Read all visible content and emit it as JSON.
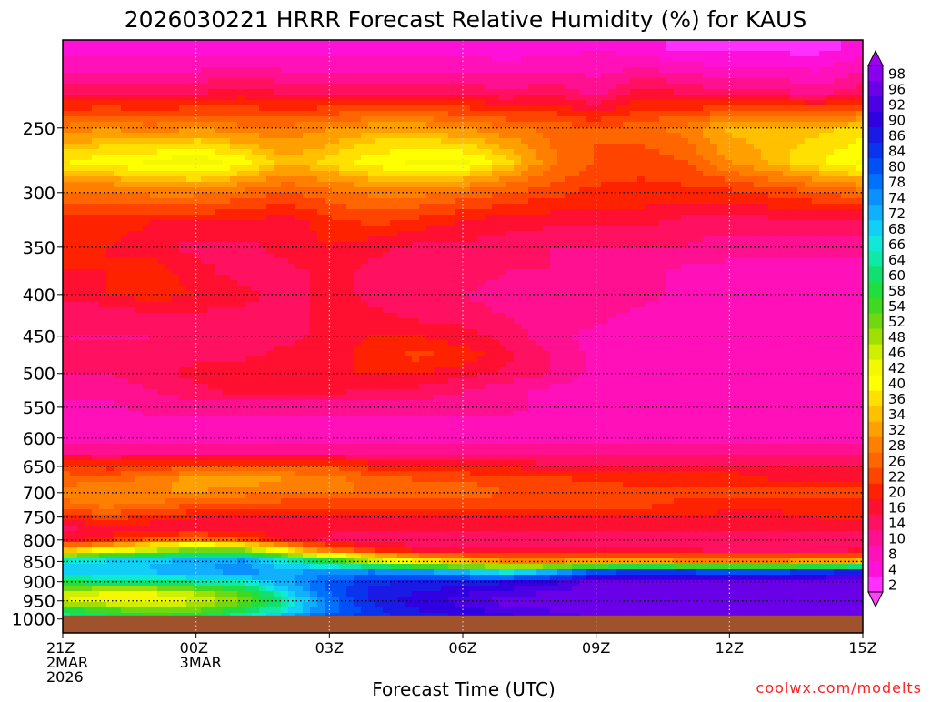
{
  "chart_data": {
    "type": "heatmap",
    "title": "2026030221 HRRR Forecast Relative Humidity (%) for KAUS",
    "xlabel": "Forecast Time (UTC)",
    "ylabel": "",
    "credit": "coolwx.com/modelts",
    "x_ticks": [
      {
        "hour": 0,
        "label": [
          "21Z",
          "2MAR",
          "2026"
        ]
      },
      {
        "hour": 3,
        "label": [
          "00Z",
          "3MAR"
        ]
      },
      {
        "hour": 6,
        "label": [
          "03Z"
        ]
      },
      {
        "hour": 9,
        "label": [
          "06Z"
        ]
      },
      {
        "hour": 12,
        "label": [
          "09Z"
        ]
      },
      {
        "hour": 15,
        "label": [
          "12Z"
        ]
      },
      {
        "hour": 18,
        "label": [
          "15Z"
        ]
      }
    ],
    "xlim": [
      0,
      18
    ],
    "y_ticks": [
      250,
      300,
      350,
      400,
      450,
      500,
      550,
      600,
      650,
      700,
      750,
      800,
      850,
      900,
      950,
      1000
    ],
    "ylim": [
      195,
      1040
    ],
    "y_scale": "log",
    "ground_level_hpa": 990,
    "grid": true,
    "colorbar": {
      "placement": "right",
      "labels": [
        "98",
        "96",
        "92",
        "90",
        "86",
        "84",
        "80",
        "78",
        "74",
        "72",
        "68",
        "66",
        "64",
        "60",
        "58",
        "54",
        "52",
        "48",
        "46",
        "42",
        "40",
        "36",
        "34",
        "32",
        "28",
        "26",
        "22",
        "20",
        "16",
        "14",
        "10",
        "8",
        "4",
        "2"
      ],
      "colors": [
        "#8800ee",
        "#6a00e8",
        "#4c00e6",
        "#3000e0",
        "#1a1ae6",
        "#0a33ee",
        "#0050f5",
        "#0070ff",
        "#0a90ff",
        "#10b0ff",
        "#10d0f5",
        "#10e8d8",
        "#10e8a8",
        "#10e070",
        "#20dd40",
        "#40d820",
        "#70d810",
        "#a0e000",
        "#d0ee00",
        "#f4f800",
        "#ffff00",
        "#ffe000",
        "#ffc000",
        "#ffa000",
        "#ff8000",
        "#ff6600",
        "#ff4400",
        "#ff2200",
        "#ff1030",
        "#ff1060",
        "#ff1090",
        "#ff10b8",
        "#ff10d8",
        "#ff30ff"
      ]
    },
    "x": [
      0,
      1,
      2,
      3,
      4,
      5,
      6,
      7,
      8,
      9,
      10,
      11,
      12,
      13,
      14,
      15,
      16,
      17,
      18
    ],
    "levels_hpa": [
      200,
      225,
      250,
      275,
      300,
      325,
      350,
      375,
      400,
      425,
      450,
      475,
      500,
      525,
      550,
      575,
      600,
      625,
      650,
      675,
      700,
      725,
      750,
      775,
      800,
      825,
      850,
      875,
      900,
      925,
      950,
      975,
      1000
    ],
    "rh": [
      [
        4,
        4,
        4,
        4,
        4,
        4,
        4,
        4,
        4,
        4,
        4,
        4,
        6,
        4,
        2,
        2,
        2,
        2,
        4
      ],
      [
        14,
        14,
        14,
        14,
        16,
        14,
        14,
        14,
        14,
        14,
        12,
        14,
        10,
        16,
        14,
        12,
        12,
        10,
        14
      ],
      [
        28,
        30,
        28,
        30,
        28,
        28,
        30,
        32,
        32,
        30,
        28,
        26,
        24,
        26,
        28,
        34,
        34,
        34,
        36
      ],
      [
        38,
        40,
        42,
        44,
        40,
        34,
        36,
        40,
        42,
        42,
        36,
        28,
        24,
        22,
        24,
        30,
        34,
        38,
        42
      ],
      [
        26,
        26,
        28,
        28,
        26,
        24,
        26,
        28,
        28,
        26,
        24,
        22,
        20,
        20,
        20,
        20,
        22,
        24,
        26
      ],
      [
        20,
        20,
        18,
        18,
        18,
        16,
        20,
        22,
        20,
        18,
        16,
        16,
        16,
        16,
        14,
        14,
        14,
        14,
        14
      ],
      [
        20,
        18,
        16,
        14,
        14,
        16,
        18,
        16,
        14,
        14,
        14,
        12,
        12,
        12,
        12,
        10,
        10,
        10,
        10
      ],
      [
        18,
        18,
        20,
        16,
        14,
        14,
        16,
        14,
        14,
        14,
        12,
        12,
        10,
        10,
        8,
        8,
        8,
        8,
        8
      ],
      [
        16,
        18,
        20,
        18,
        16,
        14,
        16,
        14,
        12,
        12,
        10,
        10,
        10,
        10,
        8,
        8,
        8,
        8,
        8
      ],
      [
        12,
        12,
        14,
        14,
        14,
        14,
        16,
        16,
        14,
        14,
        12,
        10,
        10,
        8,
        8,
        8,
        8,
        8,
        8
      ],
      [
        12,
        12,
        12,
        14,
        14,
        14,
        16,
        18,
        18,
        16,
        14,
        10,
        8,
        8,
        8,
        8,
        8,
        8,
        8
      ],
      [
        12,
        12,
        12,
        14,
        14,
        16,
        16,
        20,
        22,
        20,
        16,
        12,
        8,
        6,
        6,
        6,
        6,
        6,
        6
      ],
      [
        12,
        12,
        14,
        16,
        18,
        18,
        18,
        18,
        18,
        16,
        14,
        12,
        8,
        6,
        6,
        6,
        6,
        6,
        6
      ],
      [
        10,
        10,
        12,
        14,
        16,
        16,
        16,
        14,
        14,
        12,
        10,
        8,
        6,
        6,
        6,
        6,
        6,
        6,
        6
      ],
      [
        8,
        8,
        10,
        10,
        10,
        10,
        10,
        10,
        10,
        10,
        10,
        8,
        6,
        6,
        6,
        6,
        6,
        6,
        6
      ],
      [
        8,
        8,
        8,
        8,
        8,
        8,
        8,
        8,
        8,
        8,
        8,
        8,
        6,
        6,
        6,
        6,
        6,
        6,
        6
      ],
      [
        8,
        8,
        8,
        8,
        8,
        8,
        8,
        8,
        8,
        8,
        8,
        8,
        8,
        8,
        8,
        8,
        8,
        8,
        8
      ],
      [
        12,
        12,
        12,
        12,
        12,
        12,
        12,
        10,
        10,
        10,
        10,
        10,
        10,
        10,
        10,
        10,
        10,
        10,
        10
      ],
      [
        22,
        20,
        22,
        24,
        24,
        24,
        24,
        20,
        18,
        18,
        18,
        16,
        16,
        16,
        16,
        16,
        16,
        16,
        16
      ],
      [
        26,
        26,
        28,
        32,
        32,
        30,
        28,
        26,
        24,
        24,
        22,
        22,
        20,
        20,
        20,
        20,
        18,
        18,
        18
      ],
      [
        28,
        30,
        30,
        30,
        28,
        28,
        28,
        26,
        26,
        26,
        24,
        24,
        24,
        22,
        22,
        22,
        22,
        22,
        22
      ],
      [
        26,
        28,
        26,
        24,
        24,
        22,
        22,
        22,
        22,
        22,
        22,
        22,
        22,
        22,
        20,
        20,
        20,
        20,
        20
      ],
      [
        20,
        22,
        20,
        18,
        18,
        18,
        18,
        18,
        18,
        18,
        18,
        18,
        18,
        18,
        18,
        16,
        16,
        18,
        20
      ],
      [
        14,
        16,
        16,
        16,
        16,
        16,
        16,
        16,
        16,
        16,
        16,
        16,
        16,
        16,
        16,
        16,
        16,
        16,
        16
      ],
      [
        16,
        20,
        26,
        28,
        24,
        18,
        14,
        12,
        12,
        12,
        12,
        12,
        12,
        12,
        12,
        12,
        12,
        12,
        12
      ],
      [
        34,
        42,
        48,
        54,
        52,
        40,
        28,
        22,
        18,
        16,
        16,
        16,
        16,
        16,
        16,
        14,
        14,
        14,
        16
      ],
      [
        66,
        68,
        70,
        72,
        74,
        66,
        58,
        46,
        38,
        34,
        30,
        30,
        32,
        32,
        30,
        30,
        30,
        32,
        34
      ],
      [
        70,
        70,
        70,
        72,
        74,
        72,
        74,
        76,
        74,
        70,
        66,
        72,
        80,
        84,
        82,
        80,
        80,
        84,
        86
      ],
      [
        60,
        62,
        62,
        64,
        66,
        72,
        80,
        84,
        86,
        86,
        88,
        90,
        96,
        96,
        96,
        96,
        96,
        96,
        96
      ],
      [
        46,
        44,
        44,
        48,
        54,
        68,
        80,
        86,
        88,
        90,
        92,
        94,
        96,
        96,
        96,
        96,
        96,
        96,
        96
      ],
      [
        44,
        42,
        42,
        44,
        50,
        62,
        76,
        86,
        90,
        92,
        96,
        96,
        96,
        96,
        96,
        96,
        96,
        96,
        96
      ],
      [
        58,
        54,
        50,
        52,
        58,
        66,
        78,
        84,
        88,
        90,
        92,
        94,
        96,
        96,
        96,
        96,
        96,
        96,
        96
      ],
      [
        66,
        62,
        58,
        60,
        66,
        74,
        80,
        84,
        86,
        88,
        90,
        92,
        94,
        94,
        94,
        94,
        94,
        94,
        94
      ]
    ]
  }
}
